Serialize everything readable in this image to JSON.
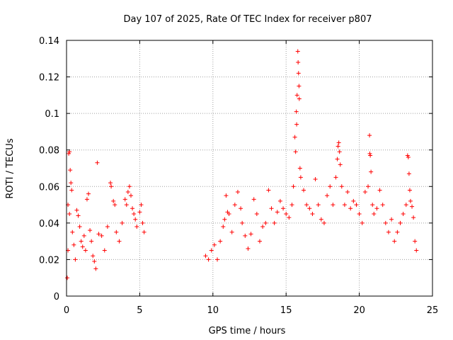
{
  "chart_data": {
    "type": "scatter",
    "title": "Day 107 of 2025, Rate Of TEC Index for receiver p807",
    "xlabel": "GPS time / hours",
    "ylabel": "ROTI / TECUs",
    "xlim": [
      0,
      25
    ],
    "ylim": [
      0,
      0.14
    ],
    "x_ticks": [
      0,
      5,
      10,
      15,
      20,
      25
    ],
    "y_ticks": [
      0,
      0.02,
      0.04,
      0.06,
      0.08,
      0.1,
      0.12,
      0.14
    ],
    "x_tick_labels": [
      "0",
      "5",
      "10",
      "15",
      "20",
      "25"
    ],
    "y_tick_labels": [
      "0",
      "0.02",
      "0.04",
      "0.06",
      "0.08",
      "0.1",
      "0.12",
      "0.14"
    ],
    "grid": true,
    "marker": "+",
    "color": "#ff0000",
    "series": [
      {
        "name": "ROTI",
        "points": [
          [
            0.05,
            0.01
          ],
          [
            0.1,
            0.05
          ],
          [
            0.15,
            0.078
          ],
          [
            0.2,
            0.079
          ],
          [
            0.25,
            0.069
          ],
          [
            0.3,
            0.062
          ],
          [
            0.35,
            0.058
          ],
          [
            0.2,
            0.045
          ],
          [
            0.1,
            0.025
          ],
          [
            0.4,
            0.035
          ],
          [
            0.5,
            0.028
          ],
          [
            0.6,
            0.02
          ],
          [
            0.7,
            0.047
          ],
          [
            0.8,
            0.044
          ],
          [
            0.9,
            0.038
          ],
          [
            1.0,
            0.03
          ],
          [
            1.1,
            0.027
          ],
          [
            1.2,
            0.033
          ],
          [
            1.3,
            0.025
          ],
          [
            1.4,
            0.053
          ],
          [
            1.5,
            0.056
          ],
          [
            1.6,
            0.036
          ],
          [
            1.7,
            0.03
          ],
          [
            1.8,
            0.022
          ],
          [
            1.9,
            0.019
          ],
          [
            2.0,
            0.015
          ],
          [
            2.1,
            0.073
          ],
          [
            2.2,
            0.034
          ],
          [
            2.4,
            0.033
          ],
          [
            2.6,
            0.025
          ],
          [
            2.8,
            0.038
          ],
          [
            3.0,
            0.062
          ],
          [
            3.05,
            0.06
          ],
          [
            3.2,
            0.052
          ],
          [
            3.3,
            0.05
          ],
          [
            3.4,
            0.035
          ],
          [
            3.6,
            0.03
          ],
          [
            3.8,
            0.04
          ],
          [
            4.0,
            0.053
          ],
          [
            4.1,
            0.05
          ],
          [
            4.2,
            0.057
          ],
          [
            4.3,
            0.06
          ],
          [
            4.4,
            0.055
          ],
          [
            4.5,
            0.048
          ],
          [
            4.6,
            0.045
          ],
          [
            4.7,
            0.042
          ],
          [
            4.8,
            0.038
          ],
          [
            5.0,
            0.046
          ],
          [
            5.1,
            0.05
          ],
          [
            5.2,
            0.04
          ],
          [
            5.3,
            0.035
          ],
          [
            9.5,
            0.022
          ],
          [
            9.7,
            0.02
          ],
          [
            9.9,
            0.025
          ],
          [
            10.1,
            0.028
          ],
          [
            10.3,
            0.02
          ],
          [
            10.5,
            0.03
          ],
          [
            10.7,
            0.038
          ],
          [
            10.8,
            0.042
          ],
          [
            10.9,
            0.055
          ],
          [
            11.0,
            0.046
          ],
          [
            11.1,
            0.045
          ],
          [
            11.3,
            0.035
          ],
          [
            11.5,
            0.05
          ],
          [
            11.7,
            0.057
          ],
          [
            11.9,
            0.048
          ],
          [
            12.0,
            0.04
          ],
          [
            12.2,
            0.033
          ],
          [
            12.4,
            0.026
          ],
          [
            12.6,
            0.034
          ],
          [
            12.8,
            0.053
          ],
          [
            13.0,
            0.045
          ],
          [
            13.2,
            0.03
          ],
          [
            13.4,
            0.038
          ],
          [
            13.6,
            0.04
          ],
          [
            13.8,
            0.058
          ],
          [
            14.0,
            0.048
          ],
          [
            14.2,
            0.04
          ],
          [
            14.4,
            0.046
          ],
          [
            14.6,
            0.052
          ],
          [
            14.8,
            0.048
          ],
          [
            15.0,
            0.045
          ],
          [
            15.2,
            0.043
          ],
          [
            15.4,
            0.05
          ],
          [
            15.5,
            0.06
          ],
          [
            15.6,
            0.087
          ],
          [
            15.7,
            0.101
          ],
          [
            15.75,
            0.11
          ],
          [
            15.8,
            0.134
          ],
          [
            15.82,
            0.128
          ],
          [
            15.85,
            0.122
          ],
          [
            15.88,
            0.115
          ],
          [
            15.9,
            0.108
          ],
          [
            15.72,
            0.094
          ],
          [
            15.65,
            0.079
          ],
          [
            15.95,
            0.07
          ],
          [
            16.0,
            0.065
          ],
          [
            16.2,
            0.058
          ],
          [
            16.4,
            0.05
          ],
          [
            16.6,
            0.048
          ],
          [
            16.8,
            0.045
          ],
          [
            17.0,
            0.064
          ],
          [
            17.2,
            0.05
          ],
          [
            17.4,
            0.042
          ],
          [
            17.6,
            0.04
          ],
          [
            17.8,
            0.055
          ],
          [
            18.0,
            0.06
          ],
          [
            18.2,
            0.05
          ],
          [
            18.4,
            0.065
          ],
          [
            18.5,
            0.075
          ],
          [
            18.55,
            0.082
          ],
          [
            18.6,
            0.084
          ],
          [
            18.65,
            0.079
          ],
          [
            18.7,
            0.072
          ],
          [
            18.8,
            0.06
          ],
          [
            19.0,
            0.05
          ],
          [
            19.2,
            0.057
          ],
          [
            19.4,
            0.048
          ],
          [
            19.6,
            0.052
          ],
          [
            19.8,
            0.05
          ],
          [
            20.0,
            0.045
          ],
          [
            20.2,
            0.04
          ],
          [
            20.4,
            0.057
          ],
          [
            20.6,
            0.06
          ],
          [
            20.7,
            0.088
          ],
          [
            20.72,
            0.078
          ],
          [
            20.75,
            0.077
          ],
          [
            20.8,
            0.068
          ],
          [
            20.9,
            0.05
          ],
          [
            21.0,
            0.045
          ],
          [
            21.2,
            0.048
          ],
          [
            21.4,
            0.058
          ],
          [
            21.6,
            0.05
          ],
          [
            21.8,
            0.04
          ],
          [
            22.0,
            0.035
          ],
          [
            22.2,
            0.042
          ],
          [
            22.4,
            0.03
          ],
          [
            22.6,
            0.035
          ],
          [
            22.8,
            0.04
          ],
          [
            23.0,
            0.045
          ],
          [
            23.2,
            0.05
          ],
          [
            23.3,
            0.077
          ],
          [
            23.35,
            0.076
          ],
          [
            23.4,
            0.067
          ],
          [
            23.45,
            0.058
          ],
          [
            23.5,
            0.052
          ],
          [
            23.6,
            0.049
          ],
          [
            23.7,
            0.043
          ],
          [
            23.8,
            0.03
          ],
          [
            23.9,
            0.025
          ]
        ]
      }
    ]
  }
}
